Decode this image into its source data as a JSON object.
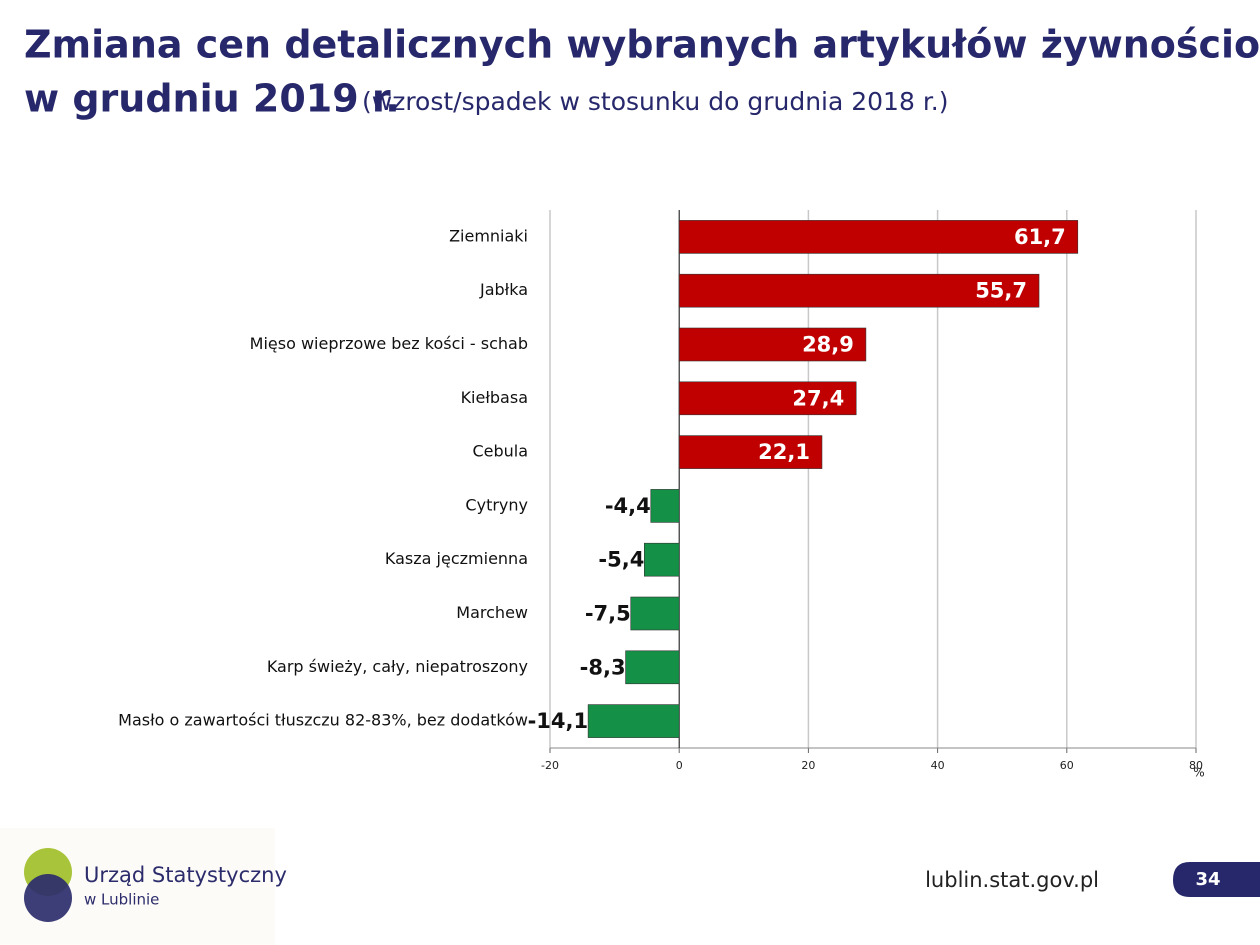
{
  "chart_data": {
    "type": "bar",
    "orientation": "horizontal",
    "title": "Zmiana cen detalicznych wybranych artykułów żywnościowych",
    "title_line2": "w grudniu 2019 r.",
    "subtitle": "(wzrost/spadek w stosunku do grudnia 2018 r.)",
    "categories": [
      "Ziemniaki",
      "Jabłka",
      "Mięso wieprzowe bez kości - schab",
      "Kiełbasa",
      "Cebula",
      "Cytryny",
      "Kasza jęczmienna",
      "Marchew",
      "Karp świeży, cały, niepatroszony",
      "Masło o zawartości tłuszczu 82-83%, bez dodatków"
    ],
    "values": [
      61.7,
      55.7,
      28.9,
      27.4,
      22.1,
      -4.4,
      -5.4,
      -7.5,
      -8.3,
      -14.1
    ],
    "value_labels": [
      "61,7",
      "55,7",
      "28,9",
      "27,4",
      "22,1",
      "-4,4",
      "-5,4",
      "-7,5",
      "-8,3",
      "-14,1"
    ],
    "colors": [
      "#c00000",
      "#c00000",
      "#c00000",
      "#c00000",
      "#c00000",
      "#149047",
      "#149047",
      "#149047",
      "#149047",
      "#149047"
    ],
    "xlim": [
      -20,
      80
    ],
    "xticks": [
      -20,
      0,
      20,
      40,
      60,
      80
    ],
    "x_unit": "%",
    "grid": true
  },
  "footer": {
    "org_name": "Urząd Statystyczny",
    "org_city": "w Lublinie",
    "url": "lublin.stat.gov.pl",
    "page": "34"
  }
}
